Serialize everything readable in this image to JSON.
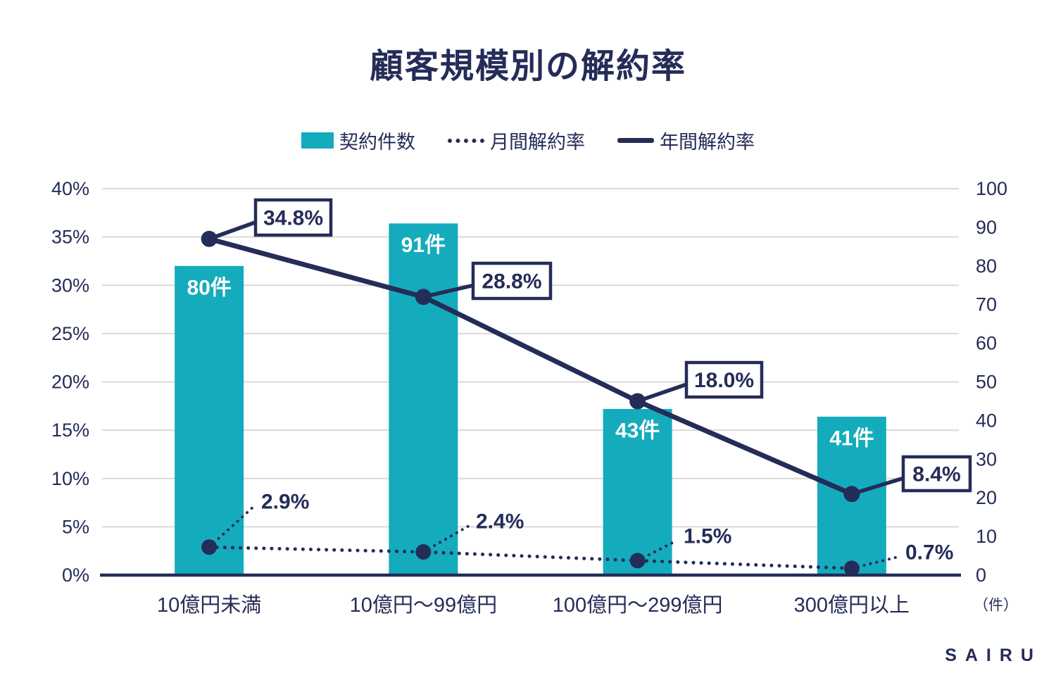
{
  "title": "顧客規模別の解約率",
  "legend": [
    {
      "label": "契約件数",
      "type": "bar"
    },
    {
      "label": "月間解約率",
      "type": "dotted-line"
    },
    {
      "label": "年間解約率",
      "type": "solid-line"
    }
  ],
  "colors": {
    "navy": "#242C58",
    "teal": "#14ACBC",
    "grid": "#D9D9D9",
    "bar_label": "#FFFFFF",
    "callout_bg": "#FFFFFF"
  },
  "footer": {
    "logo": "SAIRU"
  },
  "chart_data": {
    "type": "combo",
    "title": "顧客規模別の解約率",
    "categories": [
      "10億円未満",
      "10億円～99億円",
      "100億円～299億円",
      "300億円以上"
    ],
    "series": [
      {
        "name": "契約件数",
        "kind": "bar",
        "axis": "right",
        "values": [
          80,
          91,
          43,
          41
        ],
        "point_labels": [
          "80件",
          "91件",
          "43件",
          "41件"
        ]
      },
      {
        "name": "月間解約率",
        "kind": "line",
        "line_style": "dotted",
        "axis": "left",
        "values": [
          2.9,
          2.4,
          1.5,
          0.7
        ],
        "point_labels": [
          "2.9%",
          "2.4%",
          "1.5%",
          "0.7%"
        ]
      },
      {
        "name": "年間解約率",
        "kind": "line",
        "line_style": "solid",
        "axis": "left",
        "values": [
          34.8,
          28.8,
          18.0,
          8.4
        ],
        "point_labels": [
          "34.8%",
          "28.8%",
          "18.0%",
          "8.4%"
        ]
      }
    ],
    "left_axis": {
      "min": 0,
      "max": 40,
      "ticks": [
        "0%",
        "5%",
        "10%",
        "15%",
        "20%",
        "25%",
        "30%",
        "35%",
        "40%"
      ]
    },
    "right_axis": {
      "min": 0,
      "max": 100,
      "ticks": [
        "0",
        "10",
        "20",
        "30",
        "40",
        "50",
        "60",
        "70",
        "80",
        "90",
        "100"
      ],
      "unit_label": "（件）"
    },
    "grid": true,
    "legend_position": "top"
  }
}
